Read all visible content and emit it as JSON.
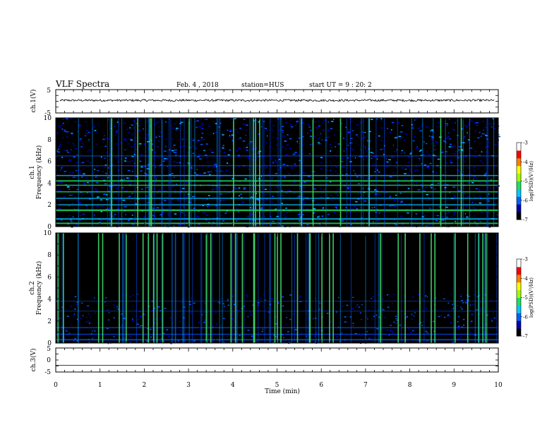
{
  "header": {
    "title": "VLF Spectra",
    "date": "Feb. 4 , 2018",
    "station": "station=HUS",
    "start": "start UT =  9 : 20: 2"
  },
  "colors": {
    "spectrogram_background": "#000000",
    "colorbar": [
      "#000000",
      "#0000b0",
      "#0060ff",
      "#00c8ff",
      "#20e060",
      "#a0ff00",
      "#ffff00",
      "#ff8000",
      "#ff0000",
      "#ffffff"
    ]
  },
  "chart_data": [
    {
      "type": "line",
      "ylabel": "ch.1(V)",
      "ylim": [
        -5,
        5
      ],
      "yticks": [
        "5",
        "-5"
      ],
      "xlim": [
        0,
        10
      ],
      "mean_value": 0.4
    },
    {
      "type": "heatmap",
      "ylabel_line1": "ch.1",
      "ylabel_line2": "Frequency (kHz)",
      "ylim": [
        0,
        10
      ],
      "yticks": [
        "0",
        "2",
        "4",
        "6",
        "8",
        "10"
      ],
      "xlim": [
        0,
        10
      ],
      "colorbar": {
        "range": [
          -7,
          -3
        ],
        "ticks": [
          "-3",
          "-4",
          "-5",
          "-6",
          "-7"
        ],
        "label": "log(PSD)(V²/Hz)"
      }
    },
    {
      "type": "heatmap",
      "ylabel_line1": "ch.2",
      "ylabel_line2": "Frequency (kHz)",
      "ylim": [
        0,
        10
      ],
      "yticks": [
        "0",
        "2",
        "4",
        "6",
        "8",
        "10"
      ],
      "xlim": [
        0,
        10
      ],
      "colorbar": {
        "range": [
          -7,
          -3
        ],
        "ticks": [
          "-3",
          "-4",
          "-5",
          "-6",
          "-7"
        ],
        "label": "log(PSD)(V²/Hz)"
      }
    },
    {
      "type": "line",
      "ylabel": "ch.3(V)",
      "ylim": [
        -5,
        5
      ],
      "yticks": [
        "5",
        "0",
        "-5"
      ],
      "xlim": [
        0,
        10
      ],
      "mean_value": -2.2
    }
  ],
  "xaxis": {
    "label": "Time (min)",
    "ticks": [
      "0",
      "1",
      "2",
      "3",
      "4",
      "5",
      "6",
      "7",
      "8",
      "9",
      "10"
    ]
  }
}
